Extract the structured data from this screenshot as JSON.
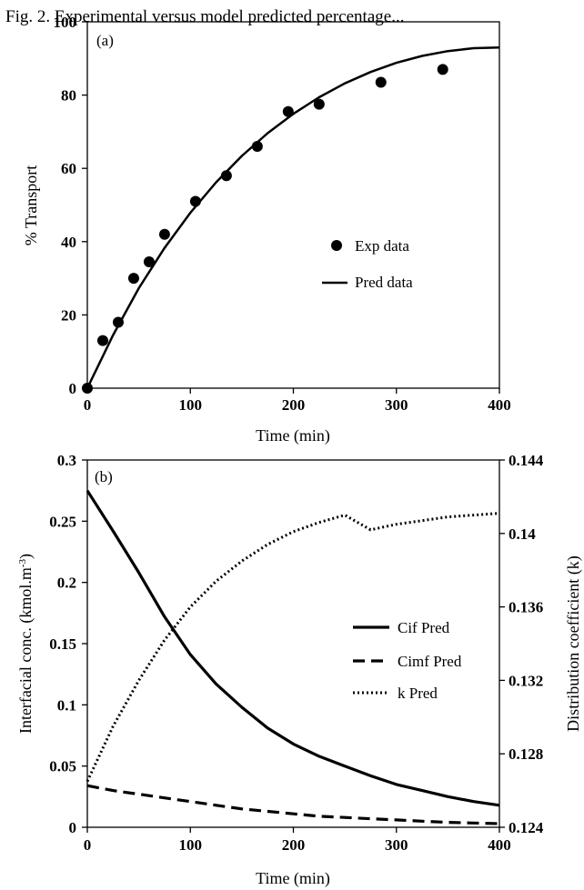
{
  "caption": "Fig. 2. Experimental versus model predicted percentage...",
  "chart_data": [
    {
      "type": "scatter",
      "panel_label": "(a)",
      "xlabel": "Time (min)",
      "ylabel": "% Transport",
      "xlim": [
        0,
        400
      ],
      "ylim": [
        0,
        100
      ],
      "xticks": [
        0,
        100,
        200,
        300,
        400
      ],
      "yticks": [
        0,
        20,
        40,
        60,
        80,
        100
      ],
      "grid": false,
      "legend_position": "center-right",
      "series": [
        {
          "name": "Exp data",
          "style": "markers",
          "x": [
            0,
            15,
            30,
            45,
            60,
            75,
            105,
            135,
            165,
            195,
            225,
            285,
            345
          ],
          "y": [
            0,
            13,
            18,
            30,
            34.5,
            42,
            51,
            58,
            66,
            75.5,
            77.5,
            83.5,
            87
          ]
        },
        {
          "name": "Pred data",
          "style": "solid",
          "x": [
            0,
            25,
            50,
            75,
            100,
            125,
            150,
            175,
            200,
            225,
            250,
            275,
            300,
            325,
            350,
            375,
            400
          ],
          "y": [
            0,
            14.5,
            27.3,
            38.3,
            47.9,
            56.2,
            63.4,
            69.6,
            74.9,
            79.4,
            83.2,
            86.3,
            88.8,
            90.7,
            92.0,
            92.8,
            93.0
          ]
        }
      ]
    },
    {
      "type": "line",
      "panel_label": "(b)",
      "xlabel": "Time (min)",
      "ylabel": "Interfacial conc. (kmol.m",
      "ylabel_superscript": "-3",
      "ylabel_close": ")",
      "y2label": "Distribution coefficient (k)",
      "xlim": [
        0,
        400
      ],
      "ylim": [
        0,
        0.3
      ],
      "y2lim": [
        0.124,
        0.144
      ],
      "xticks": [
        0,
        100,
        200,
        300,
        400
      ],
      "yticks": [
        0,
        0.05,
        0.1,
        0.15,
        0.2,
        0.25,
        0.3
      ],
      "ytick_labels": [
        "0",
        "0.05",
        "0.1",
        "0.15",
        "0.2",
        "0.25",
        "0.3"
      ],
      "y2ticks": [
        0.124,
        0.128,
        0.132,
        0.136,
        0.14,
        0.144
      ],
      "y2tick_labels": [
        "0.124",
        "0.128",
        "0.132",
        "0.136",
        "0.14",
        "0.144"
      ],
      "grid": false,
      "legend_position": "center-right",
      "series": [
        {
          "name": "Cif Pred",
          "style": "solid",
          "axis": "left",
          "x": [
            0,
            25,
            50,
            75,
            100,
            125,
            150,
            175,
            200,
            225,
            250,
            275,
            300,
            325,
            350,
            375,
            400
          ],
          "y": [
            0.275,
            0.242,
            0.208,
            0.172,
            0.141,
            0.117,
            0.098,
            0.081,
            0.068,
            0.058,
            0.05,
            0.042,
            0.035,
            0.03,
            0.025,
            0.021,
            0.018
          ]
        },
        {
          "name": "Cimf Pred",
          "style": "dashed",
          "axis": "left",
          "x": [
            0,
            25,
            50,
            75,
            100,
            125,
            150,
            175,
            200,
            225,
            250,
            275,
            300,
            325,
            350,
            375,
            400
          ],
          "y": [
            0.034,
            0.03,
            0.027,
            0.024,
            0.021,
            0.018,
            0.015,
            0.013,
            0.011,
            0.009,
            0.008,
            0.007,
            0.006,
            0.005,
            0.004,
            0.0035,
            0.003
          ]
        },
        {
          "name": "k Pred",
          "style": "dotted",
          "axis": "right",
          "x": [
            0,
            25,
            50,
            75,
            100,
            125,
            150,
            175,
            200,
            225,
            250,
            275,
            300,
            325,
            350,
            375,
            400
          ],
          "y": [
            0.1265,
            0.1295,
            0.132,
            0.1342,
            0.136,
            0.1374,
            0.1385,
            0.1394,
            0.1401,
            0.1406,
            0.141,
            0.1402,
            0.1405,
            0.1407,
            0.1409,
            0.141,
            0.1411
          ]
        }
      ]
    }
  ]
}
